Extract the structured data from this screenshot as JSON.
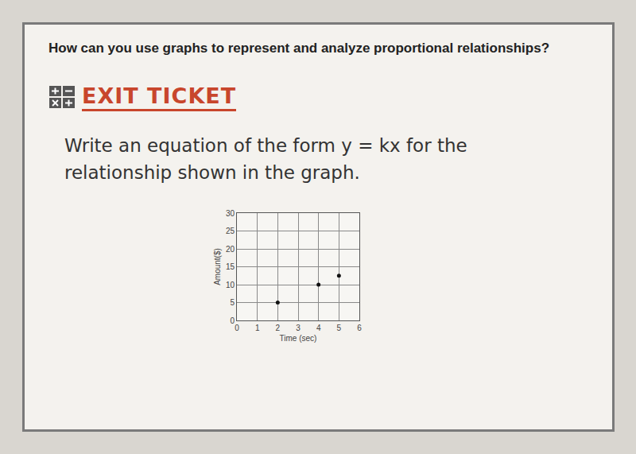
{
  "page": {
    "question": "How can you use graphs to represent and analyze proportional relationships?",
    "heading": "EXIT TICKET",
    "instruction": "Write an equation of the form y = kx for the relationship shown in the graph."
  },
  "chart_data": {
    "type": "scatter",
    "x_label": "Time (sec)",
    "y_label": "Amount($)",
    "x": [
      2,
      4,
      5
    ],
    "values": [
      5,
      10,
      12.5
    ],
    "color": "#111111",
    "marker": "circle",
    "xlim": [
      0,
      6
    ],
    "xticks": [
      0,
      1,
      2,
      3,
      4,
      5,
      6
    ],
    "ylim": [
      0,
      30
    ],
    "yticks": [
      0,
      5,
      10,
      15,
      20,
      25,
      30
    ],
    "grid": true
  }
}
